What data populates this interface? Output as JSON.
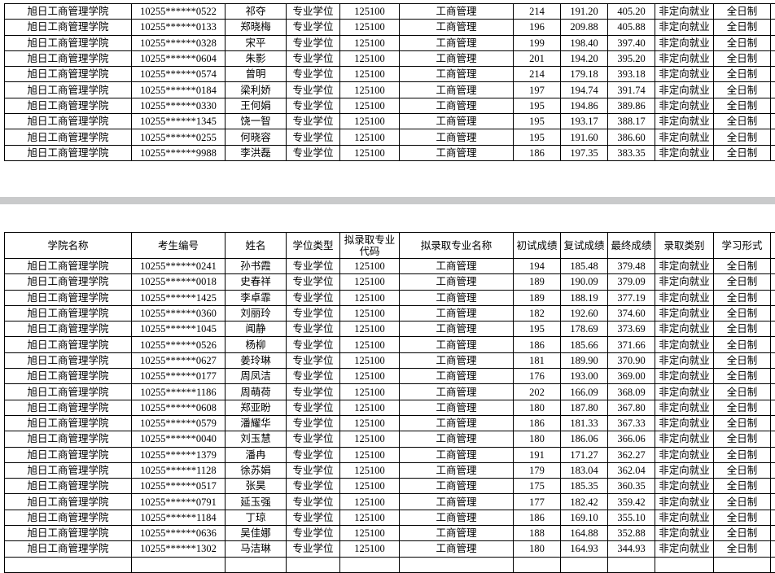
{
  "tables": [
    {
      "rows": [
        [
          "旭日工商管理学院",
          "10255******0522",
          "祁夺",
          "专业学位",
          "125100",
          "工商管理",
          "214",
          "191.20",
          "405.20",
          "非定向就业",
          "全日制"
        ],
        [
          "旭日工商管理学院",
          "10255******0133",
          "郑晓梅",
          "专业学位",
          "125100",
          "工商管理",
          "196",
          "209.88",
          "405.88",
          "非定向就业",
          "全日制"
        ],
        [
          "旭日工商管理学院",
          "10255******0328",
          "宋平",
          "专业学位",
          "125100",
          "工商管理",
          "199",
          "198.40",
          "397.40",
          "非定向就业",
          "全日制"
        ],
        [
          "旭日工商管理学院",
          "10255******0604",
          "朱影",
          "专业学位",
          "125100",
          "工商管理",
          "201",
          "194.20",
          "395.20",
          "非定向就业",
          "全日制"
        ],
        [
          "旭日工商管理学院",
          "10255******0574",
          "曾明",
          "专业学位",
          "125100",
          "工商管理",
          "214",
          "179.18",
          "393.18",
          "非定向就业",
          "全日制"
        ],
        [
          "旭日工商管理学院",
          "10255******0184",
          "梁利娇",
          "专业学位",
          "125100",
          "工商管理",
          "197",
          "194.74",
          "391.74",
          "非定向就业",
          "全日制"
        ],
        [
          "旭日工商管理学院",
          "10255******0330",
          "王何娟",
          "专业学位",
          "125100",
          "工商管理",
          "195",
          "194.86",
          "389.86",
          "非定向就业",
          "全日制"
        ],
        [
          "旭日工商管理学院",
          "10255******1345",
          "饶一智",
          "专业学位",
          "125100",
          "工商管理",
          "195",
          "193.17",
          "388.17",
          "非定向就业",
          "全日制"
        ],
        [
          "旭日工商管理学院",
          "10255******0255",
          "何晓容",
          "专业学位",
          "125100",
          "工商管理",
          "195",
          "191.60",
          "386.60",
          "非定向就业",
          "全日制"
        ],
        [
          "旭日工商管理学院",
          "10255******9988",
          "李洪磊",
          "专业学位",
          "125100",
          "工商管理",
          "186",
          "197.35",
          "383.35",
          "非定向就业",
          "全日制"
        ]
      ]
    },
    {
      "header": [
        "学院名称",
        "考生编号",
        "姓名",
        "学位类型",
        "拟录取专业代码",
        "拟录取专业名称",
        "初试成绩",
        "复试成绩",
        "最终成绩",
        "录取类别",
        "学习形式"
      ],
      "rows": [
        [
          "旭日工商管理学院",
          "10255******0241",
          "孙书霞",
          "专业学位",
          "125100",
          "工商管理",
          "194",
          "185.48",
          "379.48",
          "非定向就业",
          "全日制"
        ],
        [
          "旭日工商管理学院",
          "10255******0018",
          "史春祥",
          "专业学位",
          "125100",
          "工商管理",
          "189",
          "190.09",
          "379.09",
          "非定向就业",
          "全日制"
        ],
        [
          "旭日工商管理学院",
          "10255******1425",
          "李卓霏",
          "专业学位",
          "125100",
          "工商管理",
          "189",
          "188.19",
          "377.19",
          "非定向就业",
          "全日制"
        ],
        [
          "旭日工商管理学院",
          "10255******0360",
          "刘丽玲",
          "专业学位",
          "125100",
          "工商管理",
          "182",
          "192.60",
          "374.60",
          "非定向就业",
          "全日制"
        ],
        [
          "旭日工商管理学院",
          "10255******1045",
          "闻静",
          "专业学位",
          "125100",
          "工商管理",
          "195",
          "178.69",
          "373.69",
          "非定向就业",
          "全日制"
        ],
        [
          "旭日工商管理学院",
          "10255******0526",
          "杨柳",
          "专业学位",
          "125100",
          "工商管理",
          "186",
          "185.66",
          "371.66",
          "非定向就业",
          "全日制"
        ],
        [
          "旭日工商管理学院",
          "10255******0627",
          "姜玲琳",
          "专业学位",
          "125100",
          "工商管理",
          "181",
          "189.90",
          "370.90",
          "非定向就业",
          "全日制"
        ],
        [
          "旭日工商管理学院",
          "10255******0177",
          "周凤洁",
          "专业学位",
          "125100",
          "工商管理",
          "176",
          "193.00",
          "369.00",
          "非定向就业",
          "全日制"
        ],
        [
          "旭日工商管理学院",
          "10255******1186",
          "周萌荷",
          "专业学位",
          "125100",
          "工商管理",
          "202",
          "166.09",
          "368.09",
          "非定向就业",
          "全日制"
        ],
        [
          "旭日工商管理学院",
          "10255******0608",
          "郑亚盼",
          "专业学位",
          "125100",
          "工商管理",
          "180",
          "187.80",
          "367.80",
          "非定向就业",
          "全日制"
        ],
        [
          "旭日工商管理学院",
          "10255******0579",
          "潘耀华",
          "专业学位",
          "125100",
          "工商管理",
          "186",
          "181.33",
          "367.33",
          "非定向就业",
          "全日制"
        ],
        [
          "旭日工商管理学院",
          "10255******0040",
          "刘玉慧",
          "专业学位",
          "125100",
          "工商管理",
          "180",
          "186.06",
          "366.06",
          "非定向就业",
          "全日制"
        ],
        [
          "旭日工商管理学院",
          "10255******1379",
          "潘冉",
          "专业学位",
          "125100",
          "工商管理",
          "191",
          "171.27",
          "362.27",
          "非定向就业",
          "全日制"
        ],
        [
          "旭日工商管理学院",
          "10255******1128",
          "徐苏娟",
          "专业学位",
          "125100",
          "工商管理",
          "179",
          "183.04",
          "362.04",
          "非定向就业",
          "全日制"
        ],
        [
          "旭日工商管理学院",
          "10255******0517",
          "张昊",
          "专业学位",
          "125100",
          "工商管理",
          "175",
          "185.35",
          "360.35",
          "非定向就业",
          "全日制"
        ],
        [
          "旭日工商管理学院",
          "10255******0791",
          "延玉强",
          "专业学位",
          "125100",
          "工商管理",
          "177",
          "182.42",
          "359.42",
          "非定向就业",
          "全日制"
        ],
        [
          "旭日工商管理学院",
          "10255******1184",
          "丁琼",
          "专业学位",
          "125100",
          "工商管理",
          "186",
          "169.10",
          "355.10",
          "非定向就业",
          "全日制"
        ],
        [
          "旭日工商管理学院",
          "10255******0636",
          "吴佳娜",
          "专业学位",
          "125100",
          "工商管理",
          "188",
          "164.88",
          "352.88",
          "非定向就业",
          "全日制"
        ],
        [
          "旭日工商管理学院",
          "10255******1302",
          "马洁琳",
          "专业学位",
          "125100",
          "工商管理",
          "180",
          "164.93",
          "344.93",
          "非定向就业",
          "全日制"
        ]
      ]
    }
  ]
}
